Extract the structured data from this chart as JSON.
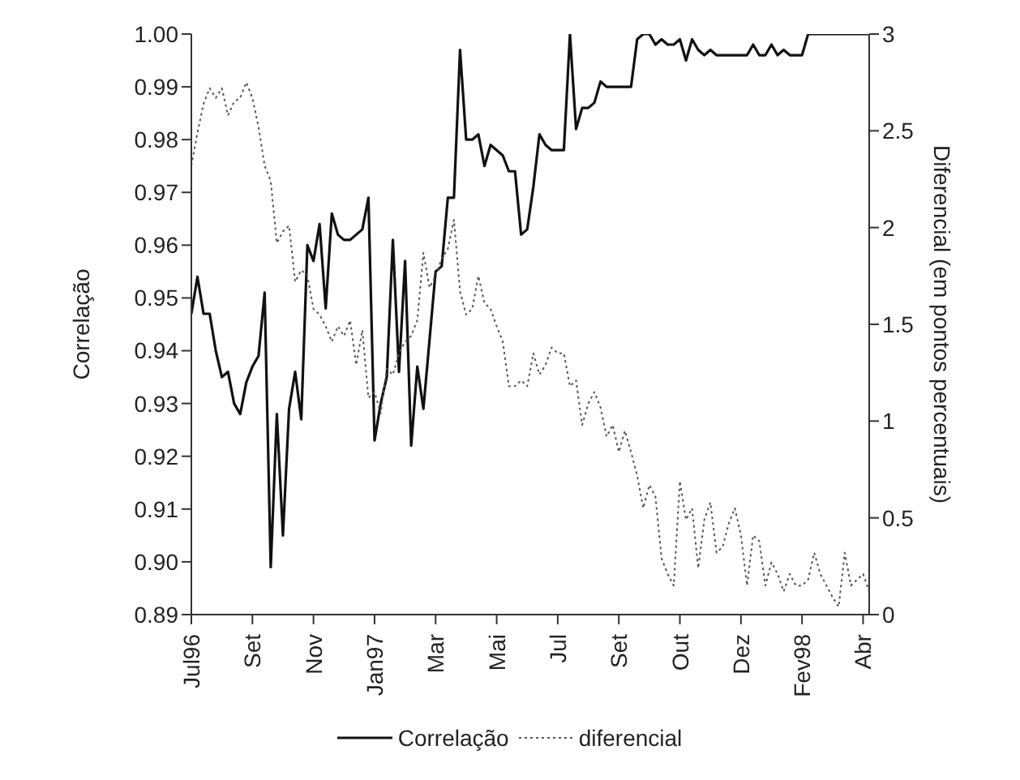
{
  "chart_data": {
    "type": "line",
    "ylabel": "Correlação",
    "y2label": "Diferencial (em pontos percentuais)",
    "categories": [
      "Jul96",
      null,
      null,
      null,
      null,
      null,
      null,
      null,
      null,
      null,
      "Set",
      null,
      null,
      null,
      null,
      null,
      null,
      null,
      null,
      null,
      "Nov",
      null,
      null,
      null,
      null,
      null,
      null,
      null,
      null,
      null,
      "Jan97",
      null,
      null,
      null,
      null,
      null,
      null,
      null,
      null,
      null,
      "Mar",
      null,
      null,
      null,
      null,
      null,
      null,
      null,
      null,
      null,
      "Mai",
      null,
      null,
      null,
      null,
      null,
      null,
      null,
      null,
      null,
      "Jul",
      null,
      null,
      null,
      null,
      null,
      null,
      null,
      null,
      null,
      "Set",
      null,
      null,
      null,
      null,
      null,
      null,
      null,
      null,
      null,
      "Out",
      null,
      null,
      null,
      null,
      null,
      null,
      null,
      null,
      null,
      "Dez",
      null,
      null,
      null,
      null,
      null,
      null,
      null,
      null,
      null,
      "Fev98",
      null,
      null,
      null,
      null,
      null,
      null,
      null,
      null,
      null,
      "Abr",
      null
    ],
    "series": [
      {
        "name": "Correlação",
        "color": "#111111",
        "line_style": "solid",
        "values": [
          0.947,
          0.954,
          0.947,
          0.947,
          0.94,
          0.935,
          0.936,
          0.93,
          0.928,
          0.934,
          0.937,
          0.939,
          0.951,
          0.899,
          0.928,
          0.905,
          0.929,
          0.936,
          0.927,
          0.96,
          0.957,
          0.964,
          0.948,
          0.966,
          0.962,
          0.961,
          0.961,
          0.962,
          0.963,
          0.969,
          0.923,
          0.93,
          0.935,
          0.961,
          0.936,
          0.957,
          0.922,
          0.937,
          0.929,
          0.942,
          0.955,
          0.956,
          0.969,
          0.969,
          0.997,
          0.98,
          0.98,
          0.981,
          0.975,
          0.979,
          0.978,
          0.977,
          0.974,
          0.974,
          0.962,
          0.963,
          0.971,
          0.981,
          0.979,
          0.978,
          0.978,
          0.978,
          1.0,
          0.982,
          0.986,
          0.986,
          0.987,
          0.991,
          0.99,
          0.99,
          0.99,
          0.99,
          0.99,
          0.999,
          1.0,
          1.0,
          0.998,
          0.999,
          0.998,
          0.998,
          0.999,
          0.995,
          0.999,
          0.997,
          0.996,
          0.997,
          0.996,
          0.996,
          0.996,
          0.996,
          0.996,
          0.996,
          0.998,
          0.996,
          0.996,
          0.998,
          0.996,
          0.997,
          0.996,
          0.996,
          0.996,
          1.0,
          1.0,
          1.0,
          1.0,
          1.0,
          1.0,
          1.0,
          1.0,
          1.0,
          1.0,
          1.0
        ]
      },
      {
        "name": "diferencial",
        "color": "#555555",
        "line_style": "dotted",
        "axis": "y2",
        "values": [
          2.32,
          2.49,
          2.64,
          2.72,
          2.67,
          2.72,
          2.58,
          2.65,
          2.67,
          2.75,
          2.67,
          2.52,
          2.32,
          2.24,
          1.92,
          1.98,
          2.01,
          1.72,
          1.78,
          1.75,
          1.58,
          1.55,
          1.49,
          1.41,
          1.49,
          1.44,
          1.52,
          1.29,
          1.47,
          1.12,
          1.15,
          1.04,
          1.27,
          1.24,
          1.35,
          1.41,
          1.44,
          1.52,
          1.87,
          1.69,
          1.75,
          1.84,
          1.89,
          2.04,
          1.67,
          1.55,
          1.58,
          1.75,
          1.61,
          1.58,
          1.49,
          1.41,
          1.18,
          1.18,
          1.21,
          1.18,
          1.35,
          1.24,
          1.29,
          1.38,
          1.35,
          1.35,
          1.18,
          1.21,
          0.98,
          1.09,
          1.15,
          1.07,
          0.92,
          0.98,
          0.84,
          0.95,
          0.84,
          0.72,
          0.55,
          0.67,
          0.61,
          0.29,
          0.21,
          0.15,
          0.69,
          0.49,
          0.55,
          0.24,
          0.49,
          0.58,
          0.32,
          0.35,
          0.47,
          0.55,
          0.41,
          0.15,
          0.41,
          0.38,
          0.15,
          0.27,
          0.21,
          0.12,
          0.21,
          0.15,
          0.15,
          0.18,
          0.32,
          0.21,
          0.15,
          0.09,
          0.04,
          0.32,
          0.15,
          0.18,
          0.21,
          0.12
        ]
      }
    ],
    "ylim": [
      0.89,
      1.0
    ],
    "yticks": [
      {
        "value": 0.89,
        "label": "0.89"
      },
      {
        "value": 0.9,
        "label": "0.90"
      },
      {
        "value": 0.91,
        "label": "0.91"
      },
      {
        "value": 0.92,
        "label": "0.92"
      },
      {
        "value": 0.93,
        "label": "0.93"
      },
      {
        "value": 0.94,
        "label": "0.94"
      },
      {
        "value": 0.95,
        "label": "0.95"
      },
      {
        "value": 0.96,
        "label": "0.96"
      },
      {
        "value": 0.97,
        "label": "0.97"
      },
      {
        "value": 0.98,
        "label": "0.98"
      },
      {
        "value": 0.99,
        "label": "0.99"
      },
      {
        "value": 1.0,
        "label": "1.00"
      }
    ],
    "y2lim": [
      0,
      3
    ],
    "y2ticks": [
      0,
      0.5,
      1,
      1.5,
      2,
      2.5,
      3
    ],
    "grid": false,
    "legend": "bottom"
  }
}
